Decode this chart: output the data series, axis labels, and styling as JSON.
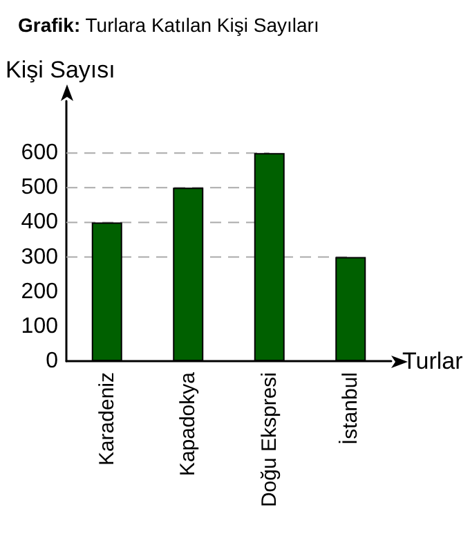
{
  "chart_data": {
    "type": "bar",
    "title": "Grafik: Turlara Katılan Kişi Sayıları",
    "xlabel": "Turlar",
    "ylabel": "Kişi Sayısı",
    "categories": [
      "Karadeniz",
      "Kapadokya",
      "Doğu Ekspresi",
      "İstanbul"
    ],
    "values": [
      400,
      500,
      600,
      300
    ],
    "color": "#006000",
    "ylim": [
      0,
      750
    ],
    "yticks": [
      0,
      100,
      200,
      300,
      400,
      500,
      600
    ],
    "grid": false,
    "ref_lines": [
      {
        "axis": "y",
        "value": 300,
        "color": "#aaaaaa",
        "line_style": "dashed"
      },
      {
        "axis": "y",
        "value": 400,
        "color": "#aaaaaa",
        "line_style": "dashed"
      },
      {
        "axis": "y",
        "value": 500,
        "color": "#aaaaaa",
        "line_style": "dashed"
      },
      {
        "axis": "y",
        "value": 600,
        "color": "#aaaaaa",
        "line_style": "dashed"
      }
    ]
  }
}
